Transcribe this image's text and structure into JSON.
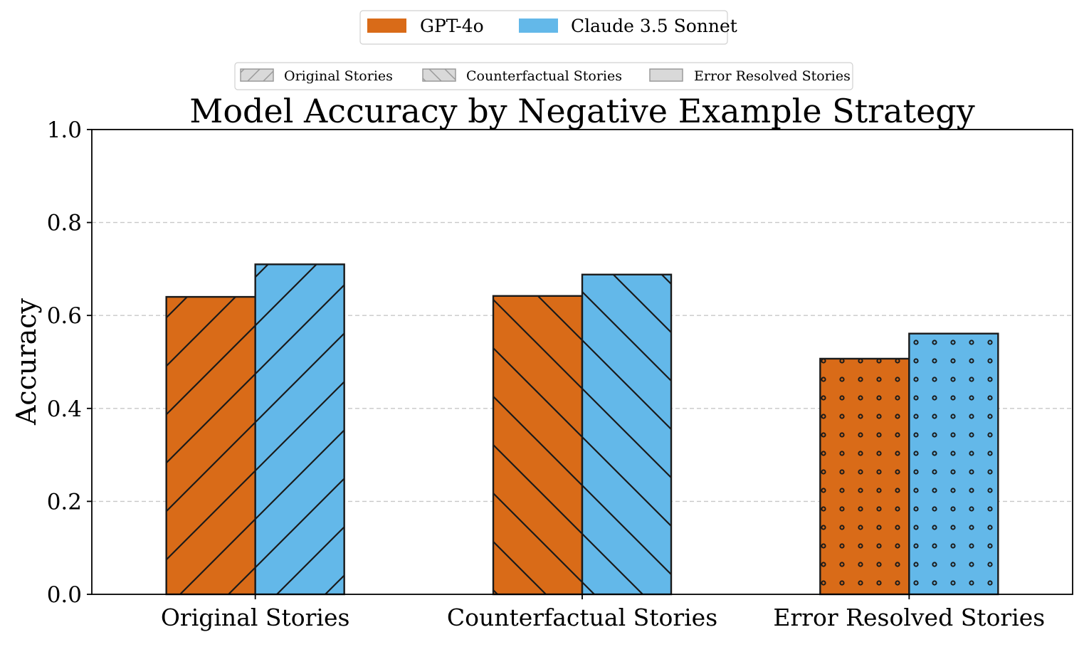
{
  "chart_data": {
    "type": "bar",
    "title": "Model Accuracy by Negative Example Strategy",
    "xlabel": "",
    "ylabel": "Accuracy",
    "categories": [
      "Original Stories",
      "Counterfactual Stories",
      "Error Resolved Stories"
    ],
    "series": [
      {
        "name": "GPT-4o",
        "color": "#D96B18",
        "values": [
          0.64,
          0.642,
          0.507
        ]
      },
      {
        "name": "Claude 3.5 Sonnet",
        "color": "#63B8E9",
        "values": [
          0.71,
          0.688,
          0.561
        ]
      }
    ],
    "hatches": [
      "forward-diagonal",
      "back-diagonal",
      "dots"
    ],
    "ylim": [
      0,
      1.0
    ],
    "yticks": [
      0.0,
      0.2,
      0.4,
      0.6,
      0.8,
      1.0
    ],
    "ytick_labels": [
      "0.0",
      "0.2",
      "0.4",
      "0.6",
      "0.8",
      "1.0"
    ],
    "grid": "y-dashed",
    "legends": {
      "models": [
        "GPT-4o",
        "Claude 3.5 Sonnet"
      ],
      "strategies": [
        "Original Stories",
        "Counterfactual Stories",
        "Error Resolved Stories"
      ],
      "placement": "top-center"
    }
  }
}
